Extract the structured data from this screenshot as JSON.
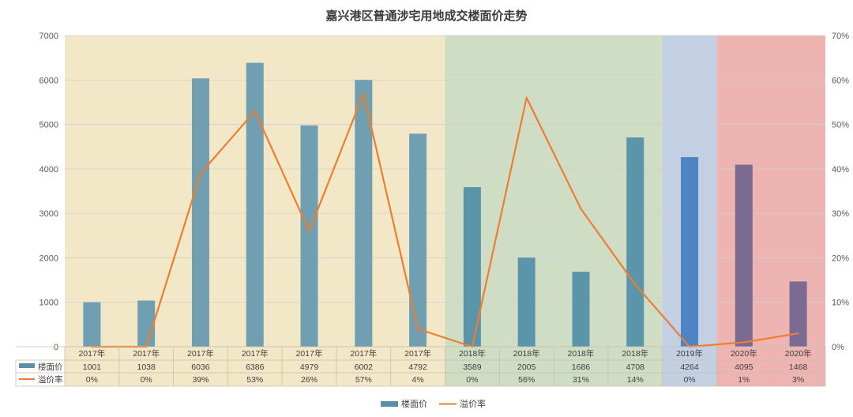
{
  "chart_data": {
    "type": "bar",
    "title": "嘉兴港区普通涉宅用地成交楼面价走势",
    "categories": [
      "2017年",
      "2017年",
      "2017年",
      "2017年",
      "2017年",
      "2017年",
      "2017年",
      "2018年",
      "2018年",
      "2018年",
      "2018年",
      "2019年",
      "2020年",
      "2020年"
    ],
    "series": [
      {
        "name": "楼面价",
        "type": "bar",
        "axis": "left",
        "color": "#5b8fa8",
        "values": [
          1001,
          1038,
          6036,
          6386,
          4979,
          6002,
          4792,
          3589,
          2005,
          1686,
          4708,
          4264,
          4095,
          1468
        ],
        "labels": [
          "1001",
          "1038",
          "6036",
          "6386",
          "4979",
          "6002",
          "4792",
          "3589",
          "2005",
          "1686",
          "4708",
          "4264",
          "4095",
          "1468"
        ]
      },
      {
        "name": "溢价率",
        "type": "line",
        "axis": "right",
        "color": "#ed7d31",
        "values": [
          0,
          0,
          39,
          53,
          26,
          57,
          4,
          0,
          56,
          31,
          14,
          0,
          1,
          3
        ],
        "labels": [
          "0%",
          "0%",
          "39%",
          "53%",
          "26%",
          "57%",
          "4%",
          "0%",
          "56%",
          "31%",
          "14%",
          "0%",
          "1%",
          "3%"
        ]
      }
    ],
    "bar_colors_by_year": {
      "2017": "#6f9fb0",
      "2018": "#5b95aa",
      "2019": "#4e83c4",
      "2020": "#7b6b93"
    },
    "y_left": {
      "min": 0,
      "max": 7000,
      "ticks": [
        "0",
        "1000",
        "2000",
        "3000",
        "4000",
        "5000",
        "6000",
        "7000"
      ]
    },
    "y_right": {
      "min": 0,
      "max": 70,
      "ticks": [
        "0%",
        "10%",
        "20%",
        "30%",
        "40%",
        "50%",
        "60%",
        "70%"
      ]
    },
    "background_bands": [
      {
        "year": "2017",
        "color": "#f2e7c6"
      },
      {
        "year": "2018",
        "color": "#cfddc4"
      },
      {
        "year": "2019",
        "color": "#c3cfe3"
      },
      {
        "year": "2020",
        "color": "#eeb4b2"
      }
    ],
    "grid": true,
    "legend_position": "bottom",
    "data_table": true
  }
}
